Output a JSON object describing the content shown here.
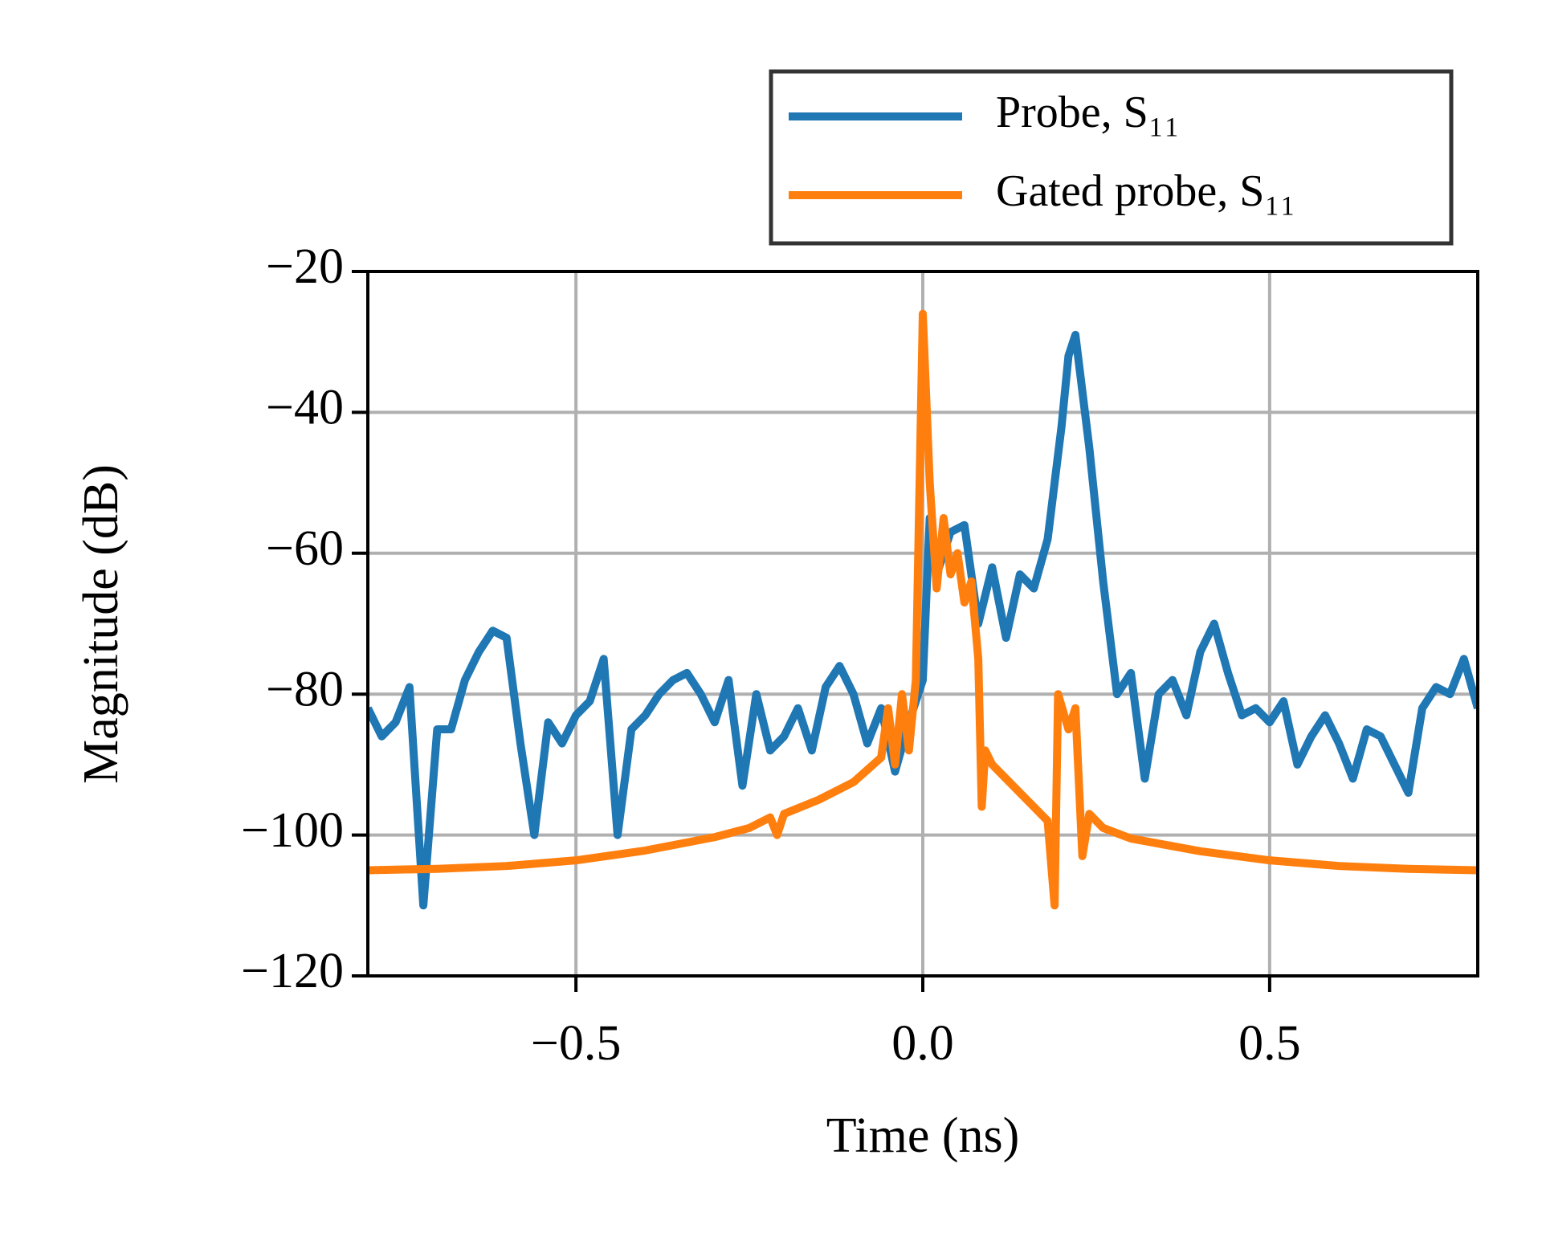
{
  "chart_data": {
    "type": "line",
    "x_label": "Time (ns)",
    "y_label": "Magnitude (dB)",
    "xlim": [
      -0.8,
      0.8
    ],
    "ylim": [
      -120,
      -20
    ],
    "xticks": [
      {
        "value": -0.5,
        "label": "−0.5"
      },
      {
        "value": 0,
        "label": "0.0"
      },
      0.5
    ],
    "yticks": [
      {
        "value": -120,
        "label": "−120"
      },
      {
        "value": -100,
        "label": "−100"
      },
      {
        "value": -80,
        "label": "−80"
      },
      {
        "value": -60,
        "label": "−60"
      },
      {
        "value": -40,
        "label": "−40"
      },
      {
        "value": -20,
        "label": "−20"
      }
    ],
    "grid": true,
    "legend": "upper right",
    "series": [
      {
        "name": "Probe, S₁₁",
        "color": "#1f77b4",
        "x": [
          -0.8,
          -0.78,
          -0.76,
          -0.74,
          -0.72,
          -0.7,
          -0.68,
          -0.66,
          -0.64,
          -0.62,
          -0.6,
          -0.58,
          -0.56,
          -0.54,
          -0.52,
          -0.5,
          -0.48,
          -0.46,
          -0.44,
          -0.42,
          -0.4,
          -0.38,
          -0.36,
          -0.34,
          -0.32,
          -0.3,
          -0.28,
          -0.26,
          -0.24,
          -0.22,
          -0.2,
          -0.18,
          -0.16,
          -0.14,
          -0.12,
          -0.1,
          -0.08,
          -0.06,
          -0.04,
          -0.02,
          0,
          0.01,
          0.02,
          0.04,
          0.06,
          0.08,
          0.1,
          0.12,
          0.14,
          0.16,
          0.18,
          0.2,
          0.21,
          0.22,
          0.24,
          0.26,
          0.28,
          0.3,
          0.32,
          0.34,
          0.36,
          0.38,
          0.4,
          0.42,
          0.44,
          0.46,
          0.48,
          0.5,
          0.52,
          0.54,
          0.56,
          0.58,
          0.6,
          0.62,
          0.64,
          0.66,
          0.68,
          0.7,
          0.72,
          0.74,
          0.76,
          0.78,
          0.8
        ],
        "values": [
          -82,
          -86,
          -84,
          -79,
          -110,
          -85,
          -85,
          -78,
          -74,
          -71,
          -72,
          -87,
          -100,
          -84,
          -87,
          -83,
          -81,
          -75,
          -100,
          -85,
          -83,
          -80,
          -78,
          -77,
          -80,
          -84,
          -78,
          -93,
          -80,
          -88,
          -86,
          -82,
          -88,
          -79,
          -76,
          -80,
          -87,
          -82,
          -91,
          -84,
          -78,
          -55,
          -63,
          -57,
          -56,
          -70,
          -62,
          -72,
          -63,
          -65,
          -58,
          -42,
          -32,
          -29,
          -45,
          -64,
          -80,
          -77,
          -92,
          -80,
          -78,
          -83,
          -74,
          -70,
          -77,
          -83,
          -82,
          -84,
          -81,
          -90,
          -86,
          -83,
          -87,
          -92,
          -85,
          -86,
          -90,
          -94,
          -82,
          -79,
          -80,
          -75,
          -82
        ]
      },
      {
        "name": "Gated probe, S₁₁",
        "color": "#ff7f0e",
        "x": [
          -0.8,
          -0.7,
          -0.6,
          -0.5,
          -0.4,
          -0.3,
          -0.25,
          -0.22,
          -0.21,
          -0.2,
          -0.15,
          -0.1,
          -0.06,
          -0.05,
          -0.04,
          -0.03,
          -0.02,
          -0.01,
          0,
          0.01,
          0.02,
          0.03,
          0.04,
          0.05,
          0.06,
          0.07,
          0.08,
          0.085,
          0.09,
          0.1,
          0.12,
          0.14,
          0.16,
          0.18,
          0.19,
          0.195,
          0.21,
          0.22,
          0.23,
          0.24,
          0.26,
          0.3,
          0.4,
          0.5,
          0.6,
          0.7,
          0.8
        ],
        "values": [
          -105,
          -104.8,
          -104.4,
          -103.6,
          -102.2,
          -100.3,
          -99,
          -97.5,
          -100,
          -97,
          -95,
          -92.5,
          -89,
          -82,
          -90,
          -80,
          -88,
          -78,
          -26,
          -50,
          -65,
          -55,
          -63,
          -60,
          -67,
          -64,
          -75,
          -96,
          -88,
          -90,
          -92,
          -94,
          -96,
          -98,
          -110,
          -80,
          -85,
          -82,
          -103,
          -97,
          -99,
          -100.5,
          -102.3,
          -103.6,
          -104.4,
          -104.8,
          -105
        ]
      }
    ]
  }
}
